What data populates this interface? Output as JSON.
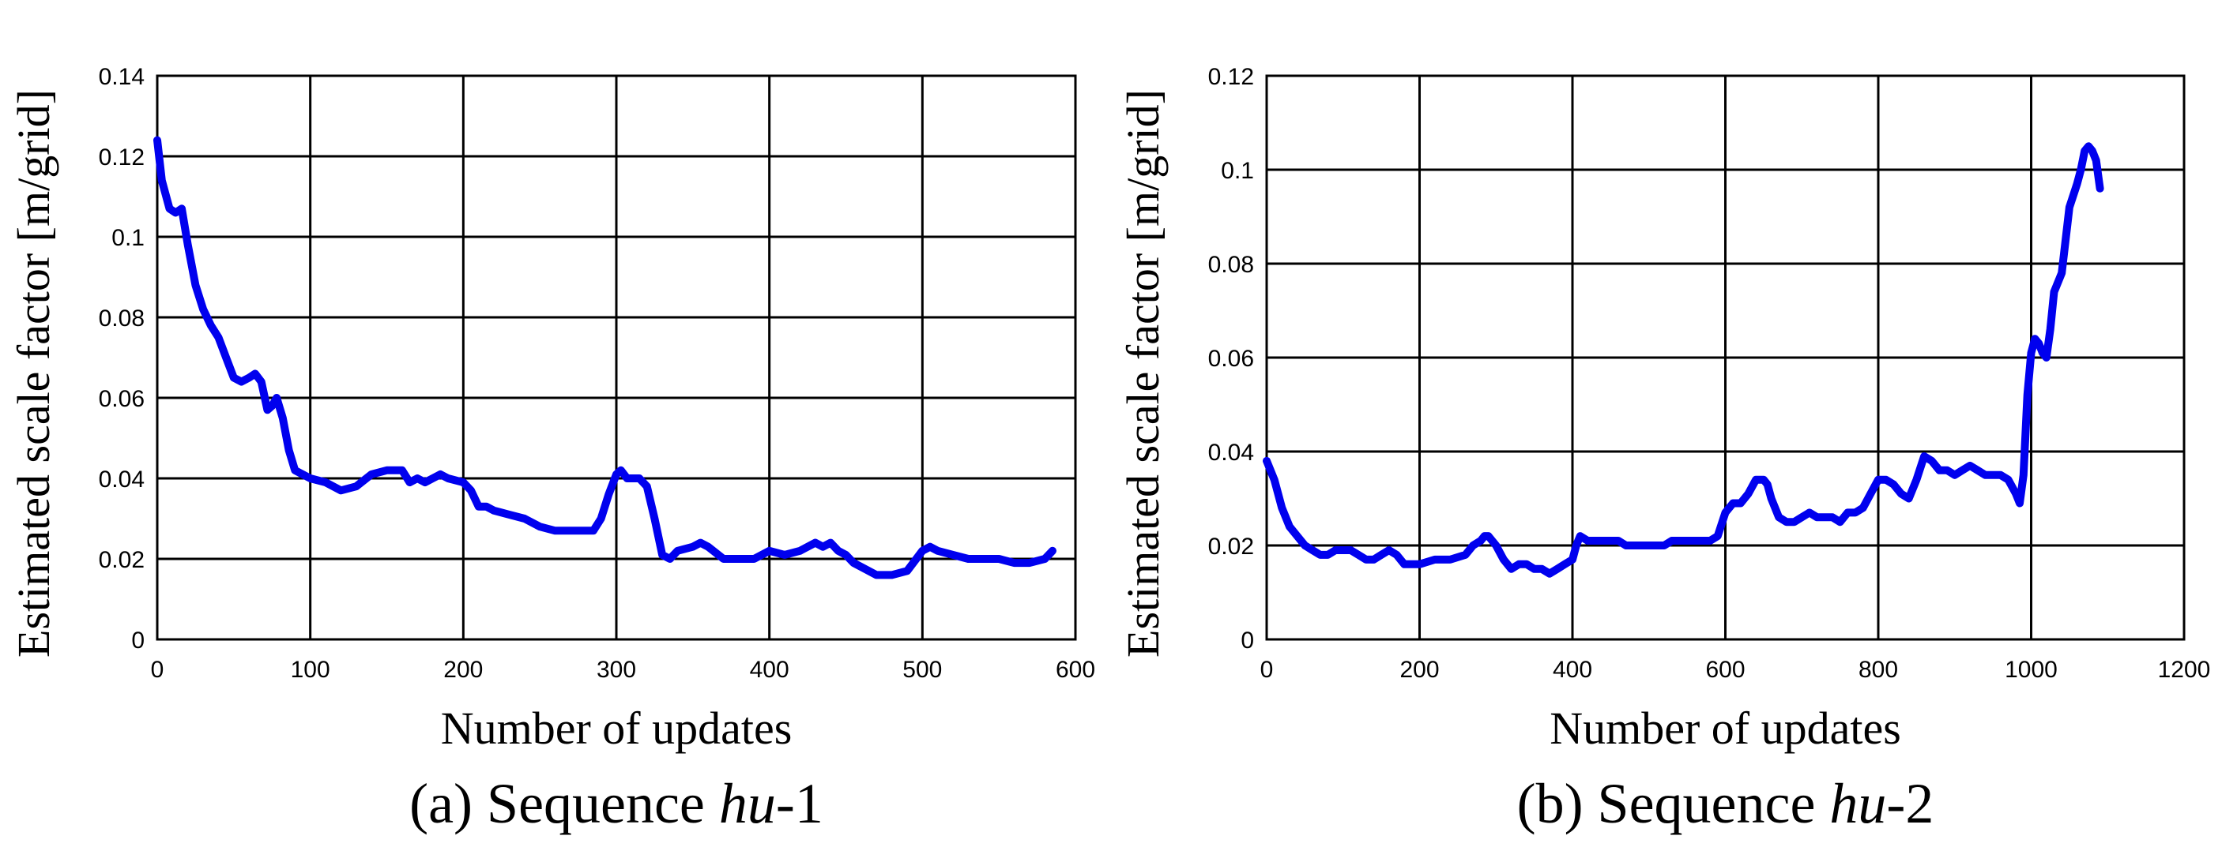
{
  "chart_data": [
    {
      "type": "line",
      "caption": {
        "prefix": "(a) Sequence ",
        "name": "hu",
        "suffix": "-1"
      },
      "xlabel": "Number of updates",
      "ylabel": "Estimated scale factor [m/grid]",
      "xlim": [
        0,
        600
      ],
      "ylim": [
        0,
        0.14
      ],
      "xticks": [
        0,
        100,
        200,
        300,
        400,
        500,
        600
      ],
      "yticks": [
        0,
        0.02,
        0.04,
        0.06,
        0.08,
        0.1,
        0.12,
        0.14
      ],
      "xtick_labels": [
        "0",
        "100",
        "200",
        "300",
        "400",
        "500",
        "600"
      ],
      "ytick_labels": [
        "0",
        "0.02",
        "0.04",
        "0.06",
        "0.08",
        "0.1",
        "0.12",
        "0.14"
      ],
      "grid": true,
      "series": [
        {
          "name": "scale factor",
          "color": "#0000ee",
          "x": [
            0,
            3,
            8,
            12,
            16,
            20,
            25,
            30,
            35,
            40,
            45,
            50,
            55,
            60,
            64,
            68,
            72,
            75,
            78,
            82,
            86,
            90,
            95,
            100,
            110,
            120,
            130,
            140,
            150,
            155,
            160,
            165,
            170,
            175,
            180,
            185,
            190,
            200,
            205,
            210,
            215,
            220,
            230,
            240,
            250,
            260,
            270,
            280,
            285,
            290,
            295,
            300,
            303,
            307,
            310,
            315,
            320,
            325,
            330,
            335,
            340,
            350,
            355,
            360,
            370,
            380,
            390,
            400,
            410,
            420,
            430,
            435,
            440,
            445,
            450,
            455,
            460,
            470,
            480,
            490,
            500,
            505,
            510,
            520,
            530,
            540,
            550,
            560,
            570,
            580,
            585
          ],
          "y": [
            0.124,
            0.114,
            0.107,
            0.106,
            0.107,
            0.098,
            0.088,
            0.082,
            0.078,
            0.075,
            0.07,
            0.065,
            0.064,
            0.065,
            0.066,
            0.064,
            0.057,
            0.058,
            0.06,
            0.055,
            0.047,
            0.042,
            0.041,
            0.04,
            0.039,
            0.037,
            0.038,
            0.041,
            0.042,
            0.042,
            0.042,
            0.039,
            0.04,
            0.039,
            0.04,
            0.041,
            0.04,
            0.039,
            0.037,
            0.033,
            0.033,
            0.032,
            0.031,
            0.03,
            0.028,
            0.027,
            0.027,
            0.027,
            0.027,
            0.03,
            0.036,
            0.041,
            0.042,
            0.04,
            0.04,
            0.04,
            0.038,
            0.03,
            0.021,
            0.02,
            0.022,
            0.023,
            0.024,
            0.023,
            0.02,
            0.02,
            0.02,
            0.022,
            0.021,
            0.022,
            0.024,
            0.023,
            0.024,
            0.022,
            0.021,
            0.019,
            0.018,
            0.016,
            0.016,
            0.017,
            0.022,
            0.023,
            0.022,
            0.021,
            0.02,
            0.02,
            0.02,
            0.019,
            0.019,
            0.02,
            0.022
          ]
        }
      ]
    },
    {
      "type": "line",
      "caption": {
        "prefix": "(b) Sequence ",
        "name": "hu",
        "suffix": "-2"
      },
      "xlabel": "Number of updates",
      "ylabel": "Estimated scale factor [m/grid]",
      "xlim": [
        0,
        1200
      ],
      "ylim": [
        0,
        0.12
      ],
      "xticks": [
        0,
        200,
        400,
        600,
        800,
        1000,
        1200
      ],
      "yticks": [
        0,
        0.02,
        0.04,
        0.06,
        0.08,
        0.1,
        0.12
      ],
      "xtick_labels": [
        "0",
        "200",
        "400",
        "600",
        "800",
        "1000",
        "1200"
      ],
      "ytick_labels": [
        "0",
        "0.02",
        "0.04",
        "0.06",
        "0.08",
        "0.1",
        "0.12"
      ],
      "grid": true,
      "series": [
        {
          "name": "scale factor",
          "color": "#0000ee",
          "x": [
            0,
            10,
            20,
            30,
            40,
            50,
            60,
            70,
            80,
            90,
            100,
            110,
            120,
            130,
            140,
            150,
            160,
            170,
            180,
            190,
            200,
            220,
            240,
            260,
            270,
            280,
            285,
            290,
            300,
            310,
            320,
            330,
            340,
            350,
            360,
            370,
            380,
            390,
            400,
            405,
            410,
            420,
            430,
            440,
            450,
            460,
            470,
            480,
            500,
            520,
            530,
            540,
            550,
            560,
            570,
            580,
            590,
            600,
            610,
            620,
            630,
            640,
            650,
            655,
            660,
            670,
            680,
            690,
            700,
            710,
            720,
            730,
            740,
            750,
            760,
            770,
            780,
            790,
            800,
            810,
            820,
            830,
            840,
            850,
            860,
            870,
            880,
            890,
            900,
            910,
            920,
            930,
            940,
            950,
            960,
            970,
            980,
            985,
            990,
            995,
            1000,
            1005,
            1010,
            1015,
            1020,
            1025,
            1030,
            1040,
            1050,
            1060,
            1065,
            1070,
            1075,
            1080,
            1085,
            1090
          ],
          "y": [
            0.038,
            0.034,
            0.028,
            0.024,
            0.022,
            0.02,
            0.019,
            0.018,
            0.018,
            0.019,
            0.019,
            0.019,
            0.018,
            0.017,
            0.017,
            0.018,
            0.019,
            0.018,
            0.016,
            0.016,
            0.016,
            0.017,
            0.017,
            0.018,
            0.02,
            0.021,
            0.022,
            0.022,
            0.02,
            0.017,
            0.015,
            0.016,
            0.016,
            0.015,
            0.015,
            0.014,
            0.015,
            0.016,
            0.017,
            0.02,
            0.022,
            0.021,
            0.021,
            0.021,
            0.021,
            0.021,
            0.02,
            0.02,
            0.02,
            0.02,
            0.021,
            0.021,
            0.021,
            0.021,
            0.021,
            0.021,
            0.022,
            0.027,
            0.029,
            0.029,
            0.031,
            0.034,
            0.034,
            0.033,
            0.03,
            0.026,
            0.025,
            0.025,
            0.026,
            0.027,
            0.026,
            0.026,
            0.026,
            0.025,
            0.027,
            0.027,
            0.028,
            0.031,
            0.034,
            0.034,
            0.033,
            0.031,
            0.03,
            0.034,
            0.039,
            0.038,
            0.036,
            0.036,
            0.035,
            0.036,
            0.037,
            0.036,
            0.035,
            0.035,
            0.035,
            0.034,
            0.031,
            0.029,
            0.035,
            0.052,
            0.061,
            0.064,
            0.063,
            0.061,
            0.06,
            0.066,
            0.074,
            0.078,
            0.092,
            0.097,
            0.1,
            0.104,
            0.105,
            0.104,
            0.102,
            0.096
          ]
        }
      ]
    }
  ]
}
